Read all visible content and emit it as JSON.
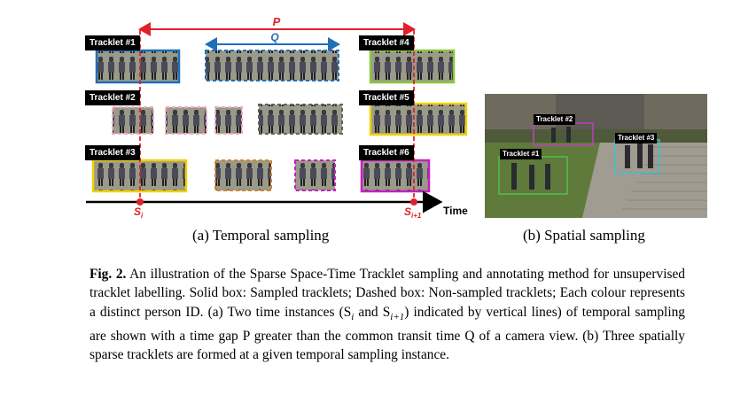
{
  "figure_a": {
    "tracklet_labels": [
      "Tracklet #1",
      "Tracklet #2",
      "Tracklet #3",
      "Tracklet #4",
      "Tracklet #5",
      "Tracklet #6"
    ],
    "p_label": "P",
    "q_label": "Q",
    "si_label": "S",
    "si_sub": "i",
    "si1_label": "S",
    "si1_sub": "i+1",
    "time_label": "Time",
    "colors": {
      "red": "#e0202a",
      "blue": "#1f6fb8",
      "pink": "#f2a6c4",
      "yellow": "#f2d100",
      "green": "#8cc63f",
      "magenta": "#c71fc1",
      "gray": "#606060",
      "orange": "#d4822b"
    }
  },
  "figure_b": {
    "tracklet_labels": [
      "Tracklet #2",
      "Tracklet #3",
      "Tracklet #1"
    ],
    "box_colors": [
      "#c040c0",
      "#40c0c8",
      "#50c050"
    ]
  },
  "subcaptions": {
    "a": "(a) Temporal sampling",
    "b": "(b) Spatial sampling"
  },
  "caption": {
    "label": "Fig. 2.",
    "text": "An illustration of the Sparse Space-Time Tracklet sampling and annotating method for unsupervised tracklet labelling. Solid box: Sampled tracklets; Dashed box: Non-sampled tracklets; Each colour represents a distinct person ID. (a) Two time instances (S",
    "text2": " and S",
    "text3": ") indicated by vertical lines) of temporal sampling are shown with a time gap P greater than the common transit time Q of a camera view. (b) Three spatially sparse tracklets are formed at a given temporal sampling instance."
  }
}
